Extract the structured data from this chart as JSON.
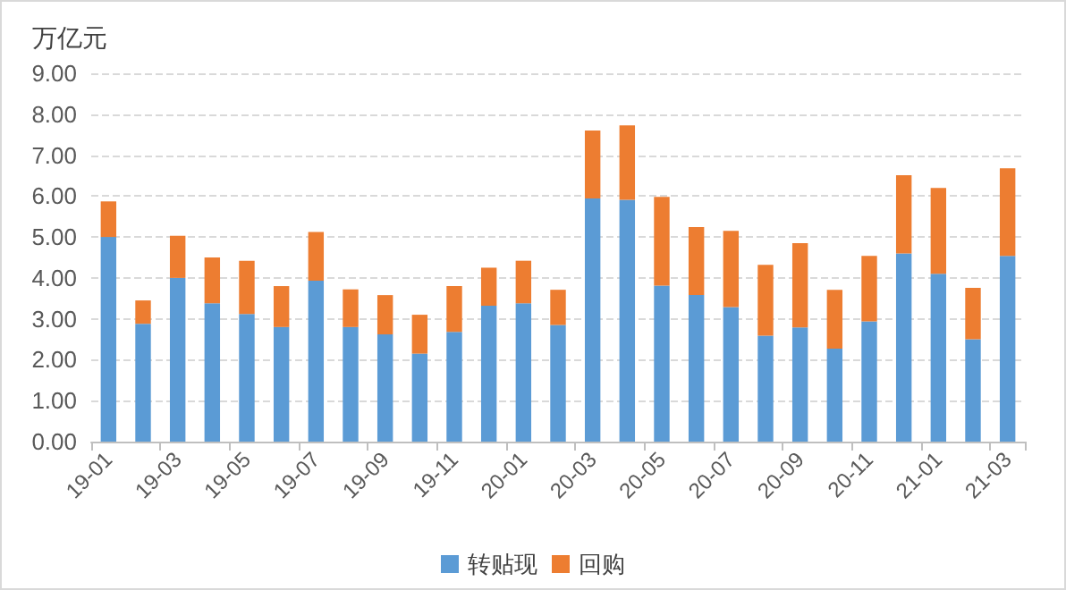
{
  "chart_data": {
    "type": "bar",
    "stacked": true,
    "ylabel": "万亿元",
    "categories": [
      "19-01",
      null,
      "19-03",
      null,
      "19-05",
      null,
      "19-07",
      null,
      "19-09",
      null,
      "19-11",
      null,
      "20-01",
      null,
      "20-03",
      null,
      "20-05",
      null,
      "20-07",
      null,
      "20-09",
      null,
      "20-11",
      null,
      "21-01",
      null,
      "21-03"
    ],
    "series": [
      {
        "name": "转贴现",
        "color": "#5b9bd5",
        "values": [
          5.0,
          2.88,
          4.0,
          3.38,
          3.12,
          2.8,
          3.93,
          2.8,
          2.62,
          2.15,
          2.68,
          3.32,
          3.38,
          2.85,
          5.94,
          5.91,
          3.81,
          3.58,
          3.29,
          2.59,
          2.79,
          2.27,
          2.94,
          4.6,
          4.1,
          2.5,
          4.54
        ]
      },
      {
        "name": "回购",
        "color": "#ed7d31",
        "values": [
          0.87,
          0.57,
          1.03,
          1.12,
          1.3,
          1.0,
          1.19,
          0.92,
          0.96,
          0.95,
          1.12,
          0.93,
          1.04,
          0.86,
          1.66,
          1.82,
          2.17,
          1.66,
          1.86,
          1.73,
          2.06,
          1.44,
          1.6,
          1.91,
          2.1,
          1.26,
          2.14
        ]
      }
    ],
    "ylim": [
      0,
      9
    ],
    "yticks": [
      {
        "value": 0,
        "label": "0.00"
      },
      {
        "value": 1,
        "label": "1.00"
      },
      {
        "value": 2,
        "label": "2.00"
      },
      {
        "value": 3,
        "label": "3.00"
      },
      {
        "value": 4,
        "label": "4.00"
      },
      {
        "value": 5,
        "label": "5.00"
      },
      {
        "value": 6,
        "label": "6.00"
      },
      {
        "value": 7,
        "label": "7.00"
      },
      {
        "value": 8,
        "label": "8.00"
      },
      {
        "value": 9,
        "label": "9.00"
      }
    ],
    "grid": "y",
    "legend": "bottom"
  }
}
